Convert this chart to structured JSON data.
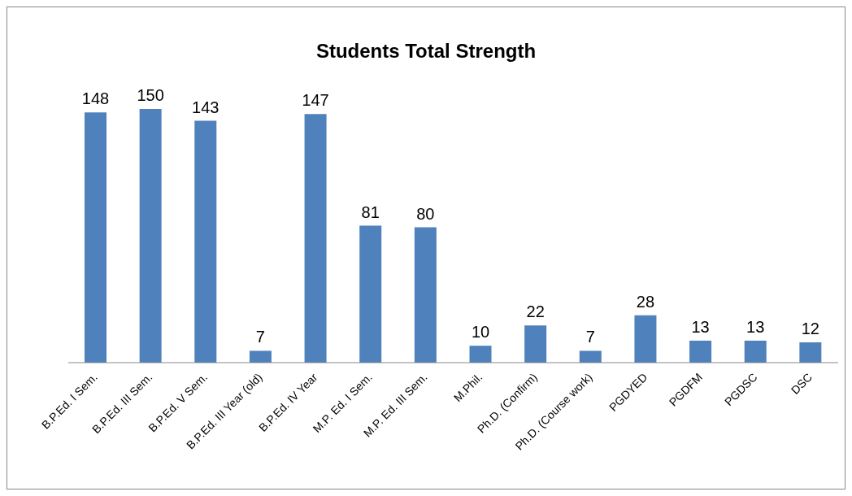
{
  "chart_data": {
    "type": "bar",
    "title": "Students Total Strength",
    "categories": [
      "B.P.Ed. I Sem.",
      "B.P.Ed. III Sem.",
      "B.P.Ed. V Sem.",
      "B.P.Ed. III Year (old)",
      "B.P.Ed. IV Year",
      "M.P. Ed. I Sem.",
      "M.P. Ed. III Sem.",
      "M.Phil.",
      "Ph.D. (Confirm)",
      "Ph.D. (Course work)",
      "PGDYED",
      "PGDFM",
      "PGDSC",
      "DSC"
    ],
    "values": [
      148,
      150,
      143,
      7,
      147,
      81,
      80,
      10,
      22,
      7,
      28,
      13,
      13,
      12
    ],
    "color": "#4f81bd",
    "data_labels": true,
    "grid": false,
    "legend": false
  }
}
